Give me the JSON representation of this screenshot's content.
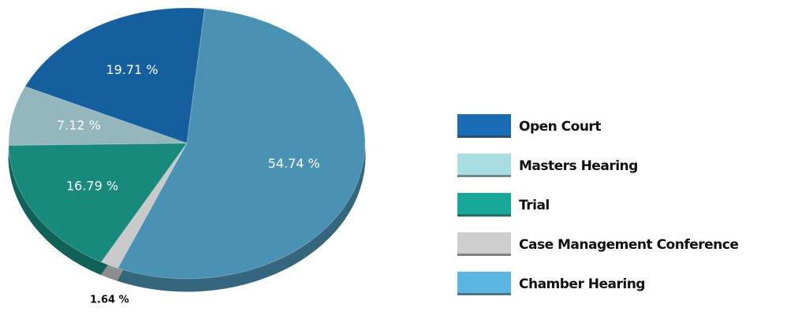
{
  "chart_data": {
    "type": "pie",
    "categories": [
      "Open Court",
      "Masters Hearing",
      "Trial",
      "Case Management Conference",
      "Chamber Hearing"
    ],
    "values": [
      19.71,
      7.12,
      16.79,
      1.64,
      54.74
    ],
    "value_labels": [
      "19.71 %",
      "7.12 %",
      "16.79 %",
      "1.64 %",
      "54.74 %"
    ],
    "colors": [
      "#155f9f",
      "#93b7bc",
      "#178a7c",
      "#c9c9c9",
      "#4a92b3"
    ],
    "legend_colors": [
      "#1a6db5",
      "#a9dfe2",
      "#17a89a",
      "#cfcfcf",
      "#5bb6e2"
    ],
    "legend": "right"
  }
}
